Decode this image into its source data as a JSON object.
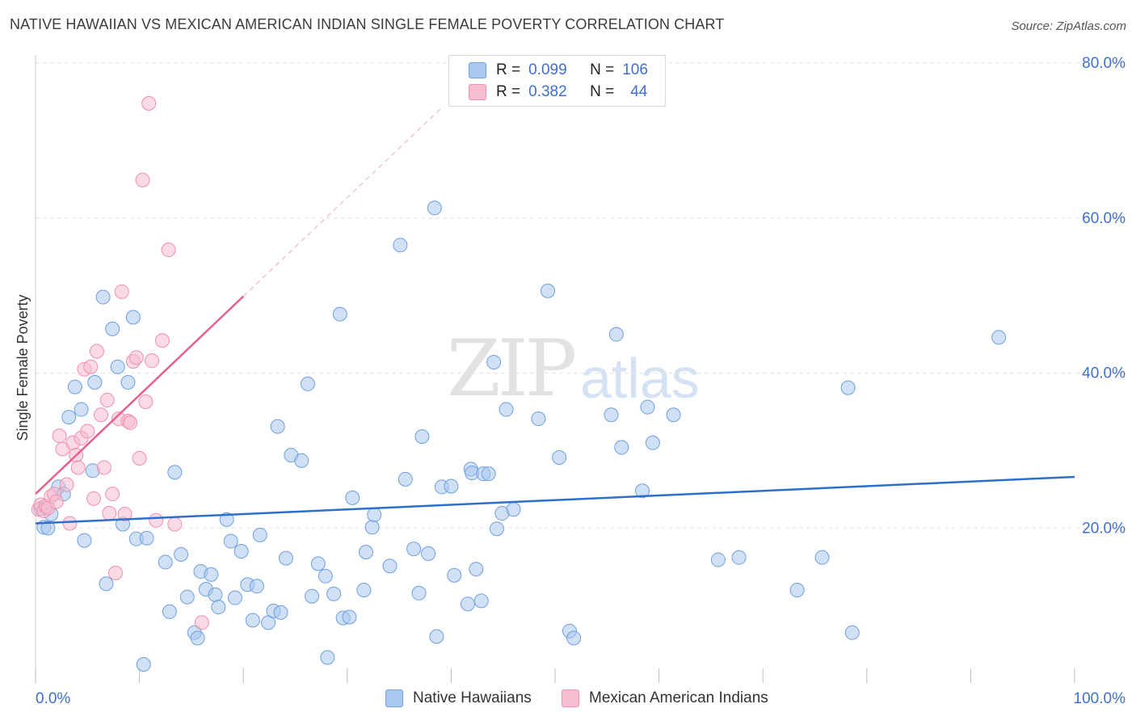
{
  "header": {
    "title": "NATIVE HAWAIIAN VS MEXICAN AMERICAN INDIAN SINGLE FEMALE POVERTY CORRELATION CHART",
    "source": "Source: ZipAtlas.com"
  },
  "watermark": {
    "zip": "ZIP",
    "atlas": "atlas"
  },
  "legend": {
    "rows": [
      {
        "r_label": "R =",
        "r_value": "0.099",
        "n_label": "N =",
        "n_value": "106",
        "color": "#aac8ee"
      },
      {
        "r_label": "R =",
        "r_value": "0.382",
        "n_label": "N =",
        "n_value": "44",
        "color": "#f6bccf"
      }
    ]
  },
  "bottom_legend": {
    "series_a": "Native Hawaiians",
    "series_b": "Mexican American Indians"
  },
  "chart_data": {
    "type": "scatter",
    "title": "NATIVE HAWAIIAN VS MEXICAN AMERICAN INDIAN SINGLE FEMALE POVERTY CORRELATION CHART",
    "xlabel": "",
    "ylabel": "Single Female Poverty",
    "xlim": [
      0,
      100
    ],
    "ylim": [
      0,
      80
    ],
    "x_ticks": [
      "0.0%",
      "100.0%"
    ],
    "y_ticks": [
      "20.0%",
      "40.0%",
      "60.0%",
      "80.0%"
    ],
    "grid": true,
    "colors": {
      "blue": "#6f9fe0",
      "blue_fill": "#aac8ee",
      "blue_line": "#2e6fcc",
      "pink": "#f08fae",
      "pink_fill": "#f6bccf",
      "pink_line": "#e8608c"
    },
    "series": [
      {
        "name": "Native Hawaiians",
        "trend": {
          "x0": 0,
          "y0": 20.6,
          "x1": 100,
          "y1": 26.6
        },
        "points": [
          [
            0.5,
            22.5
          ],
          [
            0.8,
            20.1
          ],
          [
            1.2,
            20.0
          ],
          [
            1.5,
            21.8
          ],
          [
            2.2,
            25.3
          ],
          [
            2.7,
            24.4
          ],
          [
            3.2,
            34.3
          ],
          [
            3.8,
            38.2
          ],
          [
            4.4,
            35.3
          ],
          [
            4.7,
            18.4
          ],
          [
            5.5,
            27.4
          ],
          [
            5.7,
            38.8
          ],
          [
            6.5,
            49.8
          ],
          [
            6.8,
            12.8
          ],
          [
            7.4,
            45.7
          ],
          [
            7.9,
            40.8
          ],
          [
            8.4,
            20.5
          ],
          [
            8.9,
            38.8
          ],
          [
            9.4,
            47.2
          ],
          [
            9.7,
            18.6
          ],
          [
            10.4,
            2.4
          ],
          [
            10.7,
            18.7
          ],
          [
            12.5,
            15.6
          ],
          [
            12.9,
            9.2
          ],
          [
            13.4,
            27.2
          ],
          [
            14.0,
            16.6
          ],
          [
            14.6,
            11.1
          ],
          [
            15.3,
            6.5
          ],
          [
            15.6,
            5.8
          ],
          [
            15.9,
            14.4
          ],
          [
            16.4,
            12.1
          ],
          [
            16.9,
            14.0
          ],
          [
            17.3,
            11.4
          ],
          [
            17.6,
            9.8
          ],
          [
            18.4,
            21.1
          ],
          [
            18.8,
            18.3
          ],
          [
            19.2,
            11.0
          ],
          [
            19.8,
            17.0
          ],
          [
            20.4,
            12.7
          ],
          [
            20.9,
            8.1
          ],
          [
            21.3,
            12.5
          ],
          [
            21.6,
            19.1
          ],
          [
            22.4,
            7.8
          ],
          [
            22.9,
            9.3
          ],
          [
            23.3,
            33.1
          ],
          [
            23.6,
            9.1
          ],
          [
            24.1,
            16.1
          ],
          [
            24.6,
            29.4
          ],
          [
            25.6,
            28.7
          ],
          [
            26.2,
            38.6
          ],
          [
            26.6,
            11.2
          ],
          [
            27.2,
            15.4
          ],
          [
            27.9,
            13.8
          ],
          [
            28.1,
            3.3
          ],
          [
            28.7,
            11.5
          ],
          [
            29.3,
            47.6
          ],
          [
            29.6,
            8.4
          ],
          [
            30.2,
            8.5
          ],
          [
            30.5,
            23.9
          ],
          [
            31.6,
            12.0
          ],
          [
            31.8,
            16.9
          ],
          [
            32.4,
            20.1
          ],
          [
            32.6,
            21.7
          ],
          [
            34.1,
            15.1
          ],
          [
            35.1,
            56.5
          ],
          [
            35.6,
            26.3
          ],
          [
            36.4,
            17.3
          ],
          [
            36.9,
            11.6
          ],
          [
            37.2,
            31.8
          ],
          [
            37.8,
            16.7
          ],
          [
            38.4,
            61.3
          ],
          [
            38.6,
            6.0
          ],
          [
            39.1,
            25.3
          ],
          [
            40.0,
            25.4
          ],
          [
            40.3,
            13.9
          ],
          [
            41.6,
            10.2
          ],
          [
            41.9,
            27.6
          ],
          [
            42.0,
            27.1
          ],
          [
            42.4,
            14.7
          ],
          [
            42.9,
            10.6
          ],
          [
            43.1,
            27.0
          ],
          [
            43.6,
            27.0
          ],
          [
            44.1,
            41.4
          ],
          [
            44.4,
            19.9
          ],
          [
            44.9,
            21.9
          ],
          [
            45.3,
            35.3
          ],
          [
            46.0,
            22.4
          ],
          [
            48.4,
            34.1
          ],
          [
            49.3,
            50.6
          ],
          [
            50.4,
            29.1
          ],
          [
            51.4,
            6.7
          ],
          [
            51.8,
            5.8
          ],
          [
            55.4,
            34.6
          ],
          [
            55.9,
            45.0
          ],
          [
            56.4,
            30.4
          ],
          [
            58.4,
            24.8
          ],
          [
            58.9,
            35.6
          ],
          [
            59.4,
            31.0
          ],
          [
            61.4,
            34.6
          ],
          [
            65.7,
            15.9
          ],
          [
            67.7,
            16.2
          ],
          [
            73.3,
            12.0
          ],
          [
            75.7,
            16.2
          ],
          [
            78.2,
            38.1
          ],
          [
            78.6,
            6.5
          ],
          [
            92.7,
            44.6
          ]
        ]
      },
      {
        "name": "Mexican American Indians",
        "trend": {
          "x0": 0,
          "y0": 24.4,
          "x1": 20,
          "y1": 49.9
        },
        "points": [
          [
            0.3,
            22.4
          ],
          [
            0.5,
            23.0
          ],
          [
            0.8,
            22.2
          ],
          [
            1.0,
            22.8
          ],
          [
            1.2,
            22.6
          ],
          [
            1.5,
            24.1
          ],
          [
            1.8,
            24.4
          ],
          [
            2.0,
            23.4
          ],
          [
            2.3,
            31.9
          ],
          [
            2.6,
            30.2
          ],
          [
            3.0,
            25.6
          ],
          [
            3.3,
            20.6
          ],
          [
            3.6,
            31.0
          ],
          [
            3.9,
            29.4
          ],
          [
            4.1,
            27.8
          ],
          [
            4.4,
            31.6
          ],
          [
            4.7,
            40.5
          ],
          [
            5.0,
            32.5
          ],
          [
            5.3,
            40.8
          ],
          [
            5.6,
            23.8
          ],
          [
            5.9,
            42.8
          ],
          [
            6.3,
            34.6
          ],
          [
            6.6,
            27.8
          ],
          [
            6.9,
            36.5
          ],
          [
            7.1,
            21.9
          ],
          [
            7.4,
            24.4
          ],
          [
            7.7,
            14.2
          ],
          [
            8.0,
            34.1
          ],
          [
            8.3,
            50.5
          ],
          [
            8.6,
            21.8
          ],
          [
            8.9,
            33.8
          ],
          [
            9.1,
            33.6
          ],
          [
            9.4,
            41.5
          ],
          [
            9.7,
            42.0
          ],
          [
            10.0,
            29.0
          ],
          [
            10.3,
            64.9
          ],
          [
            10.6,
            36.3
          ],
          [
            10.9,
            74.8
          ],
          [
            11.2,
            41.6
          ],
          [
            11.6,
            21.0
          ],
          [
            12.2,
            44.2
          ],
          [
            12.8,
            55.9
          ],
          [
            13.4,
            20.5
          ],
          [
            16.0,
            7.8
          ]
        ]
      }
    ]
  }
}
